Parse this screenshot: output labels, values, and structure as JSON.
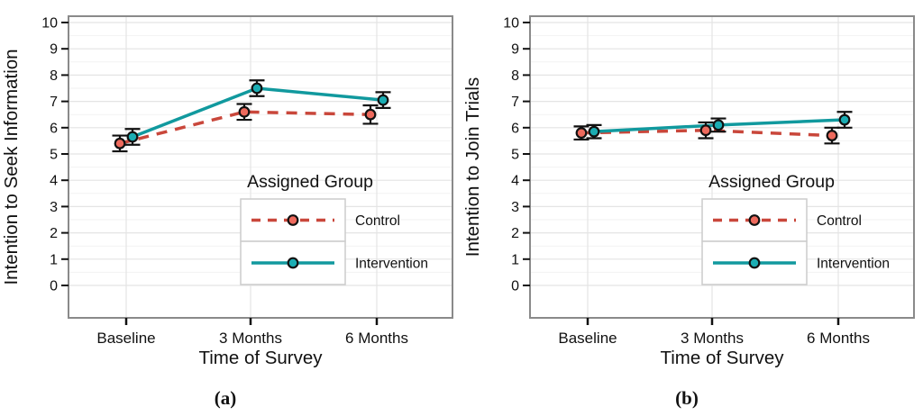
{
  "style": {
    "text_color": "#111111",
    "grid_major": "#e4e4e4",
    "grid_minor": "#f2f2f2",
    "panel_border": "#8a8a8a",
    "tick_color": "#111111",
    "error_bar_color": "#111111",
    "point_stroke": "#111111",
    "legend_box_border": "#cccccc",
    "legend_box_fill": "#ffffff",
    "control_line": "#c9473b",
    "control_point_fill": "#ee6a5d",
    "intervention_line": "#11999e",
    "intervention_point_fill": "#1badb3"
  },
  "chart_data": [
    {
      "type": "line",
      "panel_label": "(a)",
      "categories": [
        "Baseline",
        "3 Months",
        "6 Months"
      ],
      "series": [
        {
          "name": "Control",
          "values": [
            5.4,
            6.6,
            6.5
          ],
          "errors": [
            0.3,
            0.3,
            0.35
          ],
          "line_style": "dashed",
          "line_color": "#c9473b",
          "point_fill": "#ee6a5d"
        },
        {
          "name": "Intervention",
          "values": [
            5.65,
            7.5,
            7.05
          ],
          "errors": [
            0.3,
            0.3,
            0.3
          ],
          "line_style": "solid",
          "line_color": "#11999e",
          "point_fill": "#1badb3"
        }
      ],
      "xlabel": "Time of Survey",
      "ylabel": "Intention to Seek Information",
      "ylim": [
        0,
        10
      ],
      "yticks": [
        0,
        1,
        2,
        3,
        4,
        5,
        6,
        7,
        8,
        9,
        10
      ],
      "grid": true,
      "legend": {
        "title": "Assigned Group",
        "entries": [
          "Control",
          "Intervention"
        ],
        "position": "inside-bottom-right"
      }
    },
    {
      "type": "line",
      "panel_label": "(b)",
      "categories": [
        "Baseline",
        "3 Months",
        "6 Months"
      ],
      "series": [
        {
          "name": "Control",
          "values": [
            5.8,
            5.9,
            5.7
          ],
          "errors": [
            0.25,
            0.3,
            0.3
          ],
          "line_style": "dashed",
          "line_color": "#c9473b",
          "point_fill": "#ee6a5d"
        },
        {
          "name": "Intervention",
          "values": [
            5.85,
            6.1,
            6.3
          ],
          "errors": [
            0.25,
            0.25,
            0.3
          ],
          "line_style": "solid",
          "line_color": "#11999e",
          "point_fill": "#1badb3"
        }
      ],
      "xlabel": "Time of Survey",
      "ylabel": "Intention to Join Trials",
      "ylim": [
        0,
        10
      ],
      "yticks": [
        0,
        1,
        2,
        3,
        4,
        5,
        6,
        7,
        8,
        9,
        10
      ],
      "grid": true,
      "legend": {
        "title": "Assigned Group",
        "entries": [
          "Control",
          "Intervention"
        ],
        "position": "inside-bottom-right"
      }
    }
  ]
}
